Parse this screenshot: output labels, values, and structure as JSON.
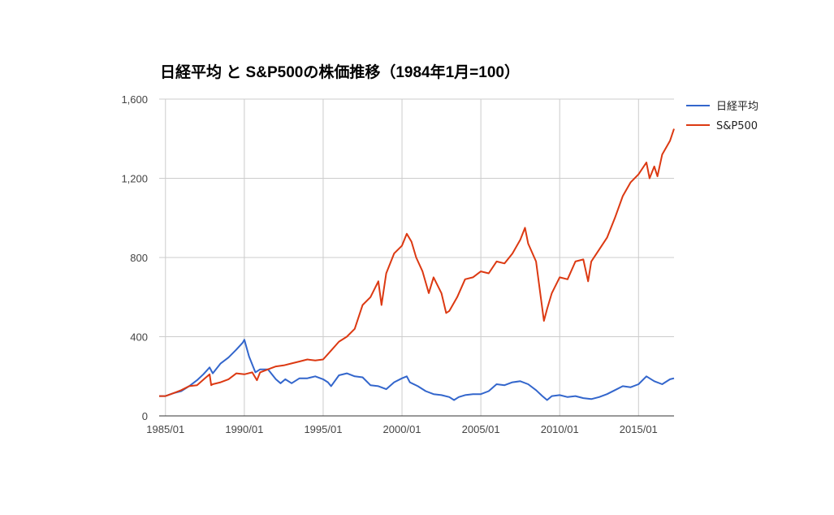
{
  "chart_data": {
    "type": "line",
    "title": "日経平均 と S&P500の株価推移（1984年1月=100）",
    "xlabel": "",
    "ylabel": "",
    "ylim": [
      0,
      1600
    ],
    "xlim": [
      1984.6,
      2017.25
    ],
    "y_ticks": [
      0,
      400,
      800,
      1200,
      1600
    ],
    "y_tick_labels": [
      "0",
      "400",
      "800",
      "1,200",
      "1,600"
    ],
    "x_ticks": [
      1985.0,
      1990.0,
      1995.0,
      2000.0,
      2005.0,
      2010.0,
      2015.0
    ],
    "x_tick_labels": [
      "1985/01",
      "1990/01",
      "1995/01",
      "2000/01",
      "2005/01",
      "2010/01",
      "2015/01"
    ],
    "grid": true,
    "legend_position": "right",
    "series": [
      {
        "name": "日経平均",
        "color": "#3366cc",
        "x": [
          1984.6,
          1985.0,
          1985.5,
          1986.0,
          1986.5,
          1987.0,
          1987.4,
          1987.8,
          1988.0,
          1988.5,
          1989.0,
          1989.5,
          1989.9,
          1990.0,
          1990.3,
          1990.5,
          1990.7,
          1991.0,
          1991.5,
          1992.0,
          1992.3,
          1992.6,
          1993.0,
          1993.5,
          1994.0,
          1994.5,
          1995.0,
          1995.3,
          1995.5,
          1996.0,
          1996.5,
          1997.0,
          1997.5,
          1998.0,
          1998.5,
          1999.0,
          1999.5,
          2000.0,
          2000.3,
          2000.5,
          2001.0,
          2001.5,
          2002.0,
          2002.5,
          2003.0,
          2003.3,
          2003.6,
          2004.0,
          2004.5,
          2005.0,
          2005.5,
          2006.0,
          2006.5,
          2007.0,
          2007.5,
          2008.0,
          2008.5,
          2008.9,
          2009.2,
          2009.5,
          2010.0,
          2010.5,
          2011.0,
          2011.5,
          2012.0,
          2012.5,
          2013.0,
          2013.5,
          2014.0,
          2014.5,
          2015.0,
          2015.5,
          2016.0,
          2016.5,
          2017.0,
          2017.25
        ],
        "values": [
          100,
          100,
          115,
          125,
          150,
          180,
          210,
          245,
          215,
          265,
          295,
          335,
          370,
          385,
          300,
          260,
          220,
          235,
          235,
          185,
          165,
          185,
          165,
          190,
          190,
          200,
          185,
          170,
          150,
          205,
          215,
          200,
          195,
          155,
          150,
          135,
          170,
          190,
          200,
          170,
          150,
          125,
          110,
          105,
          95,
          80,
          95,
          105,
          110,
          110,
          125,
          160,
          155,
          170,
          175,
          160,
          130,
          100,
          80,
          100,
          105,
          95,
          100,
          90,
          85,
          95,
          110,
          130,
          150,
          145,
          160,
          200,
          175,
          160,
          185,
          190
        ]
      },
      {
        "name": "S&P500",
        "color": "#dc3912",
        "x": [
          1984.6,
          1985.0,
          1985.5,
          1986.0,
          1986.5,
          1987.0,
          1987.5,
          1987.8,
          1987.9,
          1988.0,
          1988.5,
          1989.0,
          1989.5,
          1990.0,
          1990.5,
          1990.8,
          1991.0,
          1991.5,
          1992.0,
          1992.5,
          1993.0,
          1993.5,
          1994.0,
          1994.5,
          1995.0,
          1995.5,
          1996.0,
          1996.5,
          1997.0,
          1997.5,
          1998.0,
          1998.5,
          1998.7,
          1999.0,
          1999.5,
          2000.0,
          2000.3,
          2000.6,
          2000.9,
          2001.3,
          2001.7,
          2002.0,
          2002.5,
          2002.8,
          2003.0,
          2003.5,
          2004.0,
          2004.5,
          2005.0,
          2005.5,
          2006.0,
          2006.5,
          2007.0,
          2007.5,
          2007.8,
          2008.0,
          2008.5,
          2008.8,
          2009.0,
          2009.2,
          2009.5,
          2010.0,
          2010.5,
          2011.0,
          2011.5,
          2011.8,
          2012.0,
          2012.5,
          2013.0,
          2013.5,
          2014.0,
          2014.5,
          2015.0,
          2015.5,
          2015.7,
          2016.0,
          2016.2,
          2016.5,
          2017.0,
          2017.25
        ],
        "values": [
          100,
          100,
          115,
          130,
          150,
          155,
          190,
          210,
          155,
          160,
          170,
          185,
          215,
          210,
          220,
          180,
          220,
          235,
          250,
          255,
          265,
          275,
          285,
          280,
          285,
          330,
          375,
          400,
          440,
          560,
          600,
          680,
          560,
          720,
          820,
          860,
          920,
          880,
          800,
          730,
          620,
          700,
          620,
          520,
          530,
          600,
          690,
          700,
          730,
          720,
          780,
          770,
          820,
          890,
          950,
          870,
          780,
          600,
          480,
          540,
          620,
          700,
          690,
          780,
          790,
          680,
          780,
          840,
          900,
          1000,
          1110,
          1180,
          1220,
          1280,
          1200,
          1260,
          1210,
          1320,
          1390,
          1450
        ]
      }
    ]
  }
}
